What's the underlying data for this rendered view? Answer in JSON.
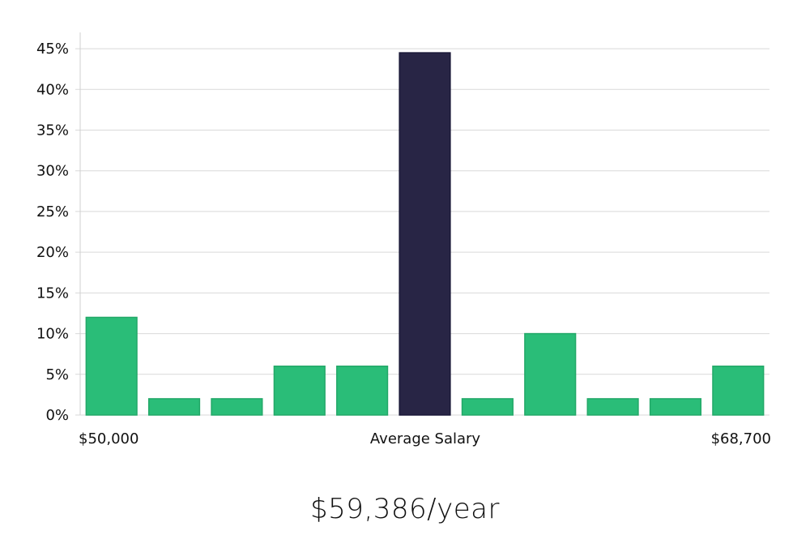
{
  "chart_data": {
    "type": "bar",
    "title": "",
    "categories": [
      "$50,000",
      "",
      "",
      "",
      "",
      "Average Salary",
      "",
      "",
      "",
      "",
      "$68,700"
    ],
    "values": [
      12,
      2,
      2,
      6,
      6,
      44.5,
      2,
      10,
      2,
      2,
      6
    ],
    "highlight_index": 5,
    "ylim": [
      0,
      47
    ],
    "yticks": [
      0,
      5,
      10,
      15,
      20,
      25,
      30,
      35,
      40,
      45
    ],
    "ytick_suffix": "%",
    "xlabel": "",
    "ylabel": "",
    "x_labels": {
      "left": "$50,000",
      "center": "Average Salary",
      "right": "$68,700"
    },
    "grid": true,
    "colors": {
      "bar": "#2abd78",
      "bar_border": "#23a868",
      "highlight": "#282545",
      "highlight_border": "#1a1838",
      "grid": "#d9d9d9",
      "axis": "#cfcfcf"
    }
  },
  "headline": "$59,386/year"
}
